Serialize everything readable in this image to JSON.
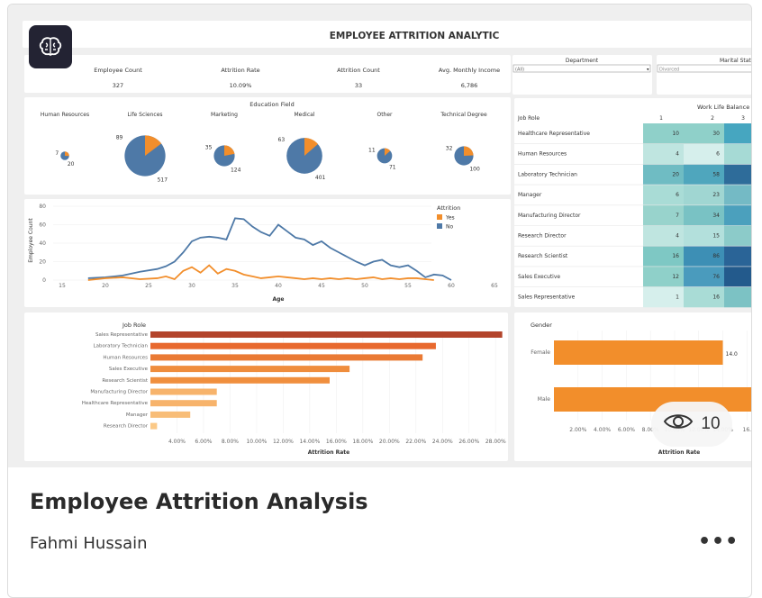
{
  "dashboard": {
    "title": "EMPLOYEE ATTRITION ANALYTIC",
    "kpis": [
      {
        "label": "Employee Count",
        "value": "327"
      },
      {
        "label": "Attrition Rate",
        "value": "10.09%"
      },
      {
        "label": "Attrition Count",
        "value": "33"
      },
      {
        "label": "Avg. Monthly Income",
        "value": "6,786"
      }
    ],
    "filters": {
      "department_label": "Department",
      "department_value": "(All)",
      "marital_label": "Marital Status",
      "marital_value": "Divorced"
    },
    "education": {
      "title": "Education Field",
      "fields": [
        {
          "name": "Human Resources",
          "yes": "7",
          "no": "20"
        },
        {
          "name": "Life Sciences",
          "yes": "89",
          "no": "517"
        },
        {
          "name": "Marketing",
          "yes": "35",
          "no": "124"
        },
        {
          "name": "Medical",
          "yes": "63",
          "no": "401"
        },
        {
          "name": "Other",
          "yes": "11",
          "no": "71"
        },
        {
          "name": "Technical Degree",
          "yes": "32",
          "no": "100"
        }
      ]
    },
    "line_chart": {
      "ylabel": "Employee Count",
      "xlabel": "Age",
      "yticks": [
        "80",
        "60",
        "40",
        "20",
        "0"
      ],
      "xticks": [
        "15",
        "20",
        "25",
        "30",
        "35",
        "40",
        "45",
        "50",
        "55",
        "60",
        "65"
      ],
      "legend_title": "Attrition",
      "legend": [
        {
          "name": "Yes",
          "color": "#f28e2b"
        },
        {
          "name": "No",
          "color": "#4e79a7"
        }
      ]
    },
    "heatmap": {
      "title": "Work Life Balance",
      "row_header": "Job Role",
      "columns": [
        "1",
        "2",
        "3"
      ],
      "rows": [
        {
          "role": "Healthcare Representative",
          "v1": "10",
          "v2": "30"
        },
        {
          "role": "Human Resources",
          "v1": "4",
          "v2": "6"
        },
        {
          "role": "Laboratory Technician",
          "v1": "20",
          "v2": "58"
        },
        {
          "role": "Manager",
          "v1": "6",
          "v2": "23"
        },
        {
          "role": "Manufacturing Director",
          "v1": "7",
          "v2": "34"
        },
        {
          "role": "Research Director",
          "v1": "4",
          "v2": "15"
        },
        {
          "role": "Research Scientist",
          "v1": "16",
          "v2": "86"
        },
        {
          "role": "Sales Executive",
          "v1": "12",
          "v2": "76"
        },
        {
          "role": "Sales Representative",
          "v1": "1",
          "v2": "16"
        }
      ]
    },
    "bar_chart": {
      "title": "Job Role",
      "xlabel": "Attrition Rate",
      "xticks": [
        "4.00%",
        "6.00%",
        "8.00%",
        "10.00%",
        "12.00%",
        "14.00%",
        "16.00%",
        "18.00%",
        "20.00%",
        "22.00%",
        "24.00%",
        "26.00%",
        "28.00%"
      ],
      "roles": [
        "Sales Representative",
        "Laboratory Technician",
        "Human Resources",
        "Sales Executive",
        "Research Scientist",
        "Manufacturing Director",
        "Healthcare Representative",
        "Manager",
        "Research Director"
      ]
    },
    "gender_chart": {
      "title": "Gender",
      "xlabel": "Attrition Rate",
      "categories": [
        "Female",
        "Male"
      ],
      "female_label": "14.0",
      "xticks": [
        "2.00%",
        "4.00%",
        "6.00%",
        "8.00%",
        "10.00%",
        "12.00%",
        "14.00%",
        "16."
      ]
    }
  },
  "card": {
    "title": "Employee Attrition Analysis",
    "author": "Fahmi Hussain",
    "views": "10",
    "more": "•••"
  },
  "chart_data": [
    {
      "type": "pie",
      "title": "Education Field",
      "categories": [
        "Human Resources",
        "Life Sciences",
        "Marketing",
        "Medical",
        "Other",
        "Technical Degree"
      ],
      "series": [
        {
          "name": "Yes",
          "values": [
            7,
            89,
            35,
            63,
            11,
            32
          ]
        },
        {
          "name": "No",
          "values": [
            20,
            517,
            124,
            401,
            71,
            100
          ]
        }
      ]
    },
    {
      "type": "line",
      "xlabel": "Age",
      "ylabel": "Employee Count",
      "ylim": [
        0,
        80
      ],
      "xlim": [
        15,
        65
      ],
      "series": [
        {
          "name": "No",
          "x": [
            18,
            20,
            22,
            24,
            26,
            27,
            28,
            29,
            30,
            31,
            32,
            33,
            34,
            35,
            36,
            37,
            38,
            39,
            40,
            41,
            42,
            43,
            44,
            45,
            46,
            47,
            48,
            49,
            50,
            51,
            52,
            53,
            54,
            55,
            56,
            57,
            58,
            59,
            60
          ],
          "values": [
            2,
            3,
            5,
            9,
            12,
            15,
            20,
            30,
            42,
            46,
            47,
            46,
            44,
            67,
            66,
            58,
            52,
            48,
            60,
            53,
            46,
            44,
            38,
            42,
            35,
            30,
            25,
            20,
            16,
            20,
            22,
            16,
            14,
            16,
            10,
            3,
            6,
            5,
            0
          ]
        },
        {
          "name": "Yes",
          "x": [
            18,
            20,
            22,
            24,
            26,
            27,
            28,
            29,
            30,
            31,
            32,
            33,
            34,
            35,
            36,
            37,
            38,
            39,
            40,
            41,
            42,
            43,
            44,
            45,
            46,
            47,
            48,
            49,
            50,
            51,
            52,
            53,
            54,
            55,
            56,
            57,
            58
          ],
          "values": [
            0,
            2,
            3,
            1,
            2,
            4,
            1,
            10,
            14,
            8,
            16,
            7,
            12,
            10,
            6,
            4,
            2,
            3,
            4,
            3,
            2,
            1,
            2,
            1,
            2,
            1,
            2,
            1,
            2,
            3,
            1,
            2,
            1,
            2,
            2,
            1,
            0
          ]
        }
      ]
    },
    {
      "type": "heatmap",
      "title": "Work Life Balance",
      "categories": [
        "Healthcare Representative",
        "Human Resources",
        "Laboratory Technician",
        "Manager",
        "Manufacturing Director",
        "Research Director",
        "Research Scientist",
        "Sales Executive",
        "Sales Representative"
      ],
      "x": [
        "1",
        "2"
      ],
      "series": [
        {
          "name": "1",
          "values": [
            10,
            4,
            20,
            6,
            7,
            4,
            16,
            12,
            1
          ]
        },
        {
          "name": "2",
          "values": [
            30,
            6,
            58,
            23,
            34,
            15,
            86,
            76,
            16
          ]
        }
      ]
    },
    {
      "type": "bar",
      "xlabel": "Attrition Rate",
      "categories": [
        "Sales Representative",
        "Laboratory Technician",
        "Human Resources",
        "Sales Executive",
        "Research Scientist",
        "Manufacturing Director",
        "Healthcare Representative",
        "Manager",
        "Research Director"
      ],
      "values": [
        28.5,
        23.5,
        22.5,
        17.0,
        15.5,
        7.0,
        7.0,
        5.0,
        2.5
      ],
      "xlim": [
        2,
        29
      ]
    },
    {
      "type": "bar",
      "xlabel": "Attrition Rate",
      "categories": [
        "Female",
        "Male"
      ],
      "values": [
        14.0,
        16.5
      ],
      "xlim": [
        0,
        16.5
      ]
    }
  ]
}
